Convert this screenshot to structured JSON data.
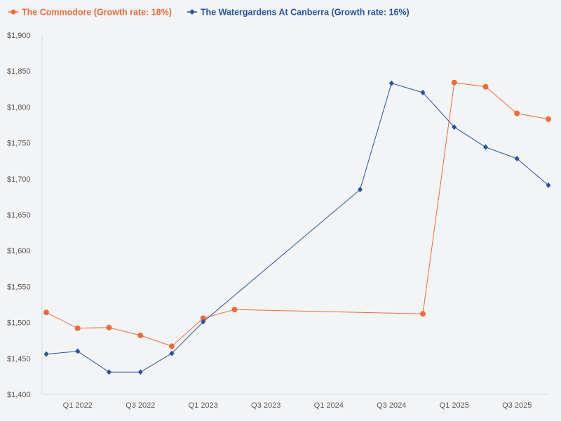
{
  "chart_data": {
    "type": "line",
    "title": "",
    "xlabel": "",
    "ylabel": "",
    "ylim": [
      1400,
      1900
    ],
    "yticks": [
      1400,
      1450,
      1500,
      1550,
      1600,
      1650,
      1700,
      1750,
      1800,
      1850,
      1900
    ],
    "ytick_labels": [
      "$1,400",
      "$1,450",
      "$1,500",
      "$1,550",
      "$1,600",
      "$1,650",
      "$1,700",
      "$1,750",
      "$1,800",
      "$1,850",
      "$1,900"
    ],
    "xlim": [
      0,
      16
    ],
    "xticks": [
      1,
      3,
      5,
      7,
      9,
      11,
      13,
      15
    ],
    "xtick_labels": [
      "Q1 2022",
      "Q3 2022",
      "Q1 2023",
      "Q3 2023",
      "Q1 2024",
      "Q3 2024",
      "Q1 2025",
      "Q3 2025"
    ],
    "legend_position": "top-left",
    "series": [
      {
        "name": "The Commodore (Growth rate: 18%)",
        "color": "#f26a35",
        "marker": "circle",
        "x": [
          0,
          1,
          2,
          3,
          4,
          5,
          6,
          12,
          13,
          14,
          15,
          16
        ],
        "values": [
          1514,
          1492,
          1493,
          1482,
          1467,
          1506,
          1518,
          1512,
          1834,
          1828,
          1791,
          1783
        ]
      },
      {
        "name": "The Watergardens At Canberra (Growth rate: 16%)",
        "color": "#2553a0",
        "marker": "diamond",
        "x": [
          0,
          1,
          2,
          3,
          4,
          5,
          10,
          11,
          12,
          13,
          14,
          15,
          16
        ],
        "values": [
          1456,
          1460,
          1431,
          1431,
          1457,
          1501,
          1685,
          1833,
          1820,
          1772,
          1744,
          1728,
          1691
        ]
      }
    ]
  }
}
